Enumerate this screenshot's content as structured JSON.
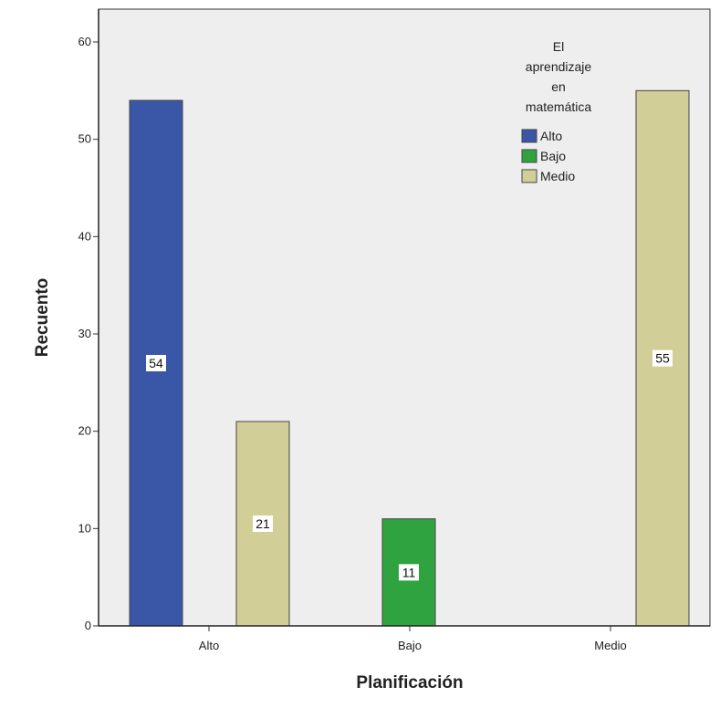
{
  "chart_data": {
    "type": "bar",
    "title": "",
    "xlabel": "Planificación",
    "ylabel": "Recuento",
    "categories": [
      "Alto",
      "Bajo",
      "Medio"
    ],
    "ylim": [
      0,
      60
    ],
    "yticks": [
      0,
      10,
      20,
      30,
      40,
      50,
      60
    ],
    "grid": false,
    "legend": {
      "title_lines": [
        "El",
        "aprendizaje",
        "en",
        "matemática"
      ],
      "position": "top-right"
    },
    "series": [
      {
        "name": "Alto",
        "color": "#3A56A6",
        "values": [
          54,
          null,
          null
        ]
      },
      {
        "name": "Bajo",
        "color": "#2FA33F",
        "values": [
          null,
          11,
          null
        ]
      },
      {
        "name": "Medio",
        "color": "#D2CE98",
        "values": [
          21,
          null,
          55
        ]
      }
    ],
    "bars": [
      {
        "category": "Alto",
        "series": "Alto",
        "value": 54,
        "label": "54"
      },
      {
        "category": "Alto",
        "series": "Medio",
        "value": 21,
        "label": "21"
      },
      {
        "category": "Bajo",
        "series": "Bajo",
        "value": 11,
        "label": "11"
      },
      {
        "category": "Medio",
        "series": "Medio",
        "value": 55,
        "label": "55"
      }
    ]
  }
}
